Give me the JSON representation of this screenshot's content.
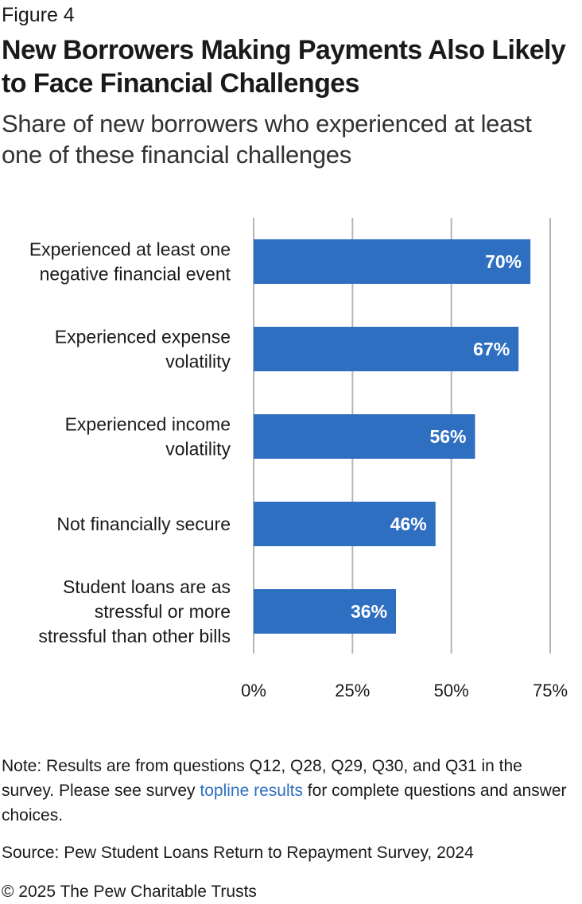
{
  "header": {
    "figure_label": "Figure 4",
    "title": "New Borrowers Making Payments Also Likely to Face Financial Challenges",
    "subtitle": "Share of new borrowers who experienced at least one of these financial challenges"
  },
  "chart_data": {
    "type": "bar",
    "orientation": "horizontal",
    "categories": [
      [
        "Experienced at least one",
        "negative financial event"
      ],
      [
        "Experienced expense",
        "volatility"
      ],
      [
        "Experienced income",
        "volatility"
      ],
      [
        "Not financially secure"
      ],
      [
        "Student loans are as",
        "stressful or more",
        "stressful than other bills"
      ]
    ],
    "values": [
      70,
      67,
      56,
      46,
      36
    ],
    "value_labels": [
      "70%",
      "67%",
      "56%",
      "46%",
      "36%"
    ],
    "xlim": [
      0,
      75
    ],
    "ticks": [
      0,
      25,
      50,
      75
    ],
    "tick_labels": [
      "0%",
      "25%",
      "50%",
      "75%"
    ],
    "grid": true,
    "bar_color": "#2f6fc2",
    "grid_color": "#b5b5b5"
  },
  "footer": {
    "note_before": "Note: Results are from questions Q12, Q28, Q29, Q30, and Q31 in the survey. Please see survey ",
    "note_link": "topline results",
    "note_after": " for complete questions and answer choices.",
    "source": "Source: Pew Student Loans Return to Repayment Survey, 2024",
    "copyright": "© 2025 The Pew Charitable Trusts"
  }
}
